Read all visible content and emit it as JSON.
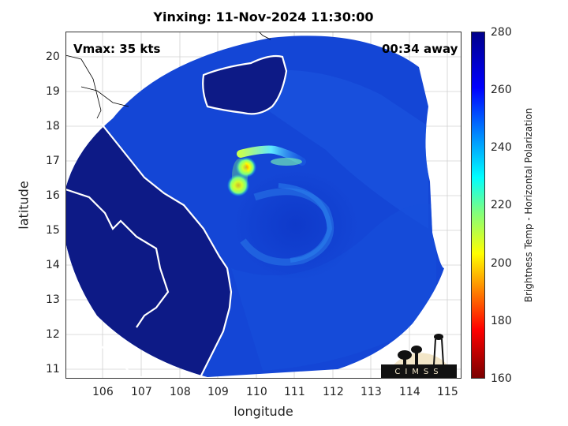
{
  "title": "Yinxing: 11-Nov-2024 11:30:00",
  "vmax_label": "Vmax: 35 kts",
  "time_label": "00:34 away",
  "xlabel": "longitude",
  "ylabel": "latitude",
  "colorbar_label": "Brightness Temp - Horizontal Polarization",
  "x_ticks": [
    "106",
    "107",
    "108",
    "109",
    "110",
    "111",
    "112",
    "113",
    "114",
    "115"
  ],
  "y_ticks": [
    "11",
    "12",
    "13",
    "14",
    "15",
    "16",
    "17",
    "18",
    "19",
    "20"
  ],
  "colorbar_ticks": [
    "160",
    "180",
    "200",
    "220",
    "240",
    "260",
    "280"
  ],
  "logo_text": "CIMSS",
  "map_extent": {
    "lon_min": 105.1,
    "lon_max": 115.4,
    "lat_min": 10.8,
    "lat_max": 20.7
  },
  "colorbar_range": [
    160,
    280
  ],
  "colors": {
    "ocean": "#1446d6",
    "land": "#0d1a86",
    "coast": "#ffffff",
    "grid": "#d0d0d0"
  },
  "colormap": [
    "#7a0000",
    "#ff0000",
    "#ff8c00",
    "#ffff00",
    "#7fff7f",
    "#00ffff",
    "#008cff",
    "#0000ff",
    "#00008a"
  ],
  "storm_center": {
    "lon": 110.5,
    "lat": 15.6
  }
}
